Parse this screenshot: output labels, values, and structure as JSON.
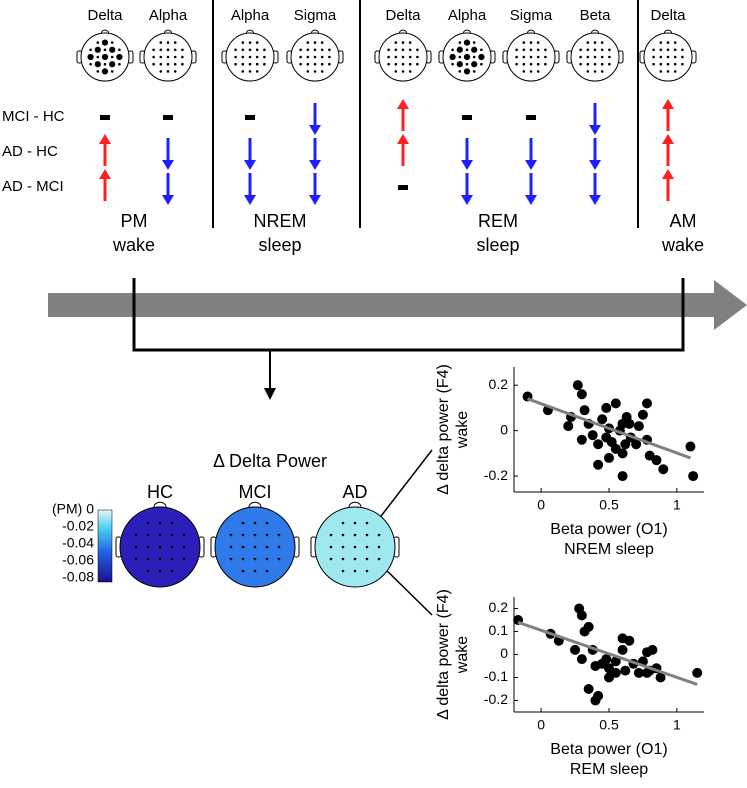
{
  "stages": [
    {
      "label": [
        "PM",
        "wake"
      ],
      "bands": [
        "Delta",
        "Alpha"
      ]
    },
    {
      "label": [
        "NREM",
        "sleep"
      ],
      "bands": [
        "Alpha",
        "Sigma"
      ]
    },
    {
      "label": [
        "REM",
        "sleep"
      ],
      "bands": [
        "Delta",
        "Alpha",
        "Sigma",
        "Beta"
      ]
    },
    {
      "label": [
        "AM",
        "wake"
      ],
      "bands": [
        "Delta"
      ]
    }
  ],
  "comparisons": [
    "MCI - HC",
    "AD - HC",
    "AD - MCI"
  ],
  "delta_power": {
    "title": "Δ Delta Power",
    "groups": [
      "HC",
      "MCI",
      "AD"
    ],
    "colorbar": {
      "lim": [
        -0.085,
        0
      ],
      "ticks": [
        {
          "value": 0,
          "label": "(PM) 0"
        },
        -0.02,
        -0.04,
        -0.06,
        -0.08
      ]
    }
  },
  "chart_data": [
    {
      "type": "scatter",
      "xlabel": [
        "Beta power (O1)",
        "NREM sleep"
      ],
      "ylabel": [
        "Δ delta power (F4)",
        "wake"
      ],
      "color": "#000000",
      "fit_color": "#808080",
      "x": [
        -0.1,
        0.05,
        0.2,
        0.22,
        0.27,
        0.3,
        0.32,
        0.35,
        0.3,
        0.38,
        0.42,
        0.45,
        0.48,
        0.5,
        0.5,
        0.52,
        0.55,
        0.58,
        0.6,
        0.6,
        0.62,
        0.63,
        0.65,
        0.66,
        0.7,
        0.72,
        0.75,
        0.78,
        0.78,
        0.8,
        0.85,
        0.9,
        1.1,
        1.12,
        0.48,
        0.55,
        0.6,
        0.42
      ],
      "y": [
        0.15,
        0.09,
        0.02,
        0.06,
        0.2,
        0.16,
        0.09,
        0.03,
        -0.04,
        -0.02,
        -0.06,
        0.05,
        -0.03,
        0.01,
        -0.12,
        -0.05,
        -0.08,
        0.0,
        0.03,
        -0.1,
        -0.06,
        0.06,
        0.03,
        -0.03,
        -0.06,
        0.02,
        0.07,
        0.12,
        -0.04,
        -0.11,
        -0.13,
        -0.17,
        -0.07,
        -0.2,
        0.1,
        0.12,
        -0.2,
        -0.15
      ],
      "fit": {
        "x": [
          -0.1,
          1.1
        ],
        "y": [
          0.14,
          -0.12
        ]
      },
      "xlim": [
        -0.2,
        1.2
      ],
      "ylim": [
        -0.27,
        0.28
      ],
      "xticks": [
        0,
        0.5,
        1
      ],
      "yticks": [
        -0.2,
        0,
        0.2
      ]
    },
    {
      "type": "scatter",
      "xlabel": [
        "Beta power (O1)",
        "REM sleep"
      ],
      "ylabel": [
        "Δ delta power (F4)",
        "wake"
      ],
      "color": "#000000",
      "fit_color": "#808080",
      "x": [
        -0.17,
        0.07,
        0.13,
        0.28,
        0.3,
        0.32,
        0.35,
        0.25,
        0.3,
        0.38,
        0.4,
        0.45,
        0.48,
        0.5,
        0.55,
        0.6,
        0.65,
        0.62,
        0.68,
        0.72,
        0.75,
        0.78,
        0.8,
        0.82,
        0.85,
        0.88,
        1.15,
        0.42,
        0.35,
        0.5,
        0.55,
        0.78,
        0.6,
        0.4
      ],
      "y": [
        0.15,
        0.09,
        0.06,
        0.2,
        0.17,
        0.1,
        0.12,
        0.02,
        -0.02,
        0.02,
        -0.05,
        -0.04,
        -0.02,
        -0.06,
        -0.03,
        0.07,
        0.06,
        -0.07,
        -0.04,
        -0.08,
        -0.03,
        0.01,
        -0.07,
        0.02,
        -0.06,
        -0.1,
        -0.08,
        -0.18,
        -0.15,
        -0.1,
        -0.08,
        -0.08,
        0.02,
        -0.2
      ],
      "fit": {
        "x": [
          -0.17,
          1.15
        ],
        "y": [
          0.14,
          -0.13
        ]
      },
      "xlim": [
        -0.2,
        1.2
      ],
      "ylim": [
        -0.25,
        0.25
      ],
      "xticks": [
        0,
        0.5,
        1
      ],
      "yticks": [
        -0.2,
        -0.1,
        0,
        0.1,
        0.2
      ]
    }
  ]
}
